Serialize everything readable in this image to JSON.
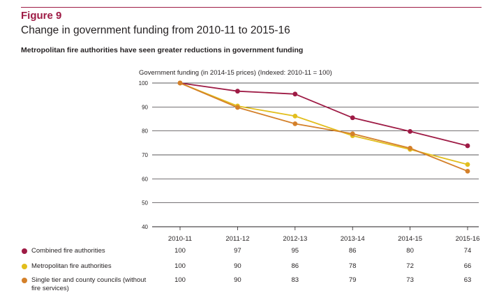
{
  "figure": {
    "label": "Figure 9",
    "title": "Change in government funding from 2010-11 to 2015-16",
    "subtitle": "Metropolitan fire authorities have seen greater reductions in government funding"
  },
  "chart_data": {
    "type": "line",
    "ylabel": "Government funding (in 2014-15 prices) (Indexed: 2010-11 = 100)",
    "categories": [
      "2010-11",
      "2011-12",
      "2012-13",
      "2013-14",
      "2014-15",
      "2015-16"
    ],
    "ylim": [
      40,
      100
    ],
    "yticks": [
      100,
      90,
      80,
      70,
      60,
      50,
      40
    ],
    "grid": true,
    "legend_position": "bottom-left table",
    "series": [
      {
        "name": "Combined fire authorities",
        "color": "#9e1b45",
        "values": [
          100,
          96.6,
          95.4,
          85.5,
          79.8,
          73.8
        ],
        "table_values": [
          "100",
          "97",
          "95",
          "86",
          "80",
          "74"
        ]
      },
      {
        "name": "Metropolitan fire authorities",
        "color": "#e2be1d",
        "values": [
          100,
          90.4,
          86.2,
          78.0,
          72.3,
          66.0
        ],
        "table_values": [
          "100",
          "90",
          "86",
          "78",
          "72",
          "66"
        ]
      },
      {
        "name": "Single tier and county councils (without fire services)",
        "color": "#d4802a",
        "values": [
          100,
          89.8,
          83.0,
          78.8,
          72.8,
          63.2
        ],
        "table_values": [
          "100",
          "90",
          "83",
          "79",
          "73",
          "63"
        ]
      }
    ]
  }
}
